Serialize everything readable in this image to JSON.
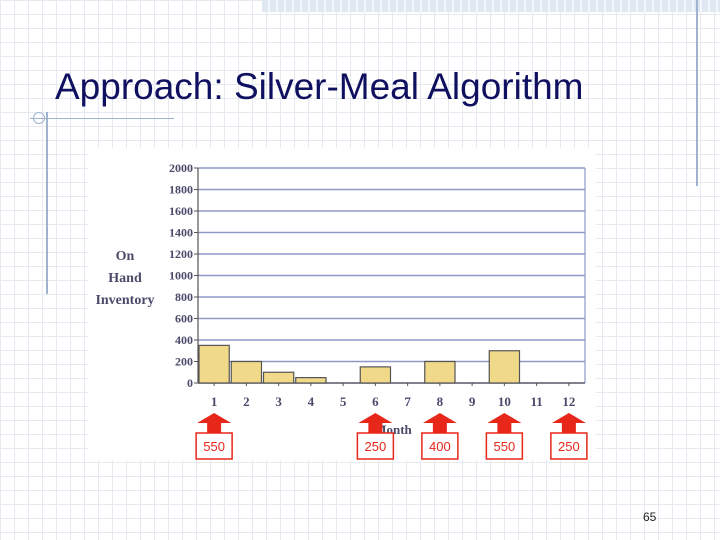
{
  "slide": {
    "title": "Approach: Silver-Meal Algorithm",
    "page_number": "65"
  },
  "colors": {
    "title": "#101060",
    "bar_fill": "#f1d98a",
    "bar_stroke": "#555555",
    "grid": "#8f98c8",
    "axis_text": "#4a4a6a",
    "arrow": "#e8271b"
  },
  "chart_data": {
    "type": "bar",
    "title": "",
    "xlabel": "Month",
    "ylabel": [
      "On",
      "Hand",
      "Inventory"
    ],
    "categories": [
      "1",
      "2",
      "3",
      "4",
      "5",
      "6",
      "7",
      "8",
      "9",
      "10",
      "11",
      "12"
    ],
    "values": [
      350,
      200,
      100,
      50,
      0,
      150,
      0,
      200,
      0,
      300,
      0,
      0
    ],
    "ylim": [
      0,
      2000
    ],
    "yticks": [
      "0",
      "200",
      "400",
      "600",
      "800",
      "1000",
      "1200",
      "1400",
      "1600",
      "1800",
      "2000"
    ],
    "grid": true,
    "orders": [
      {
        "month": "1",
        "quantity": "550"
      },
      {
        "month": "6",
        "quantity": "250"
      },
      {
        "month": "8",
        "quantity": "400"
      },
      {
        "month": "10",
        "quantity": "550"
      },
      {
        "month": "12",
        "quantity": "250"
      }
    ]
  }
}
